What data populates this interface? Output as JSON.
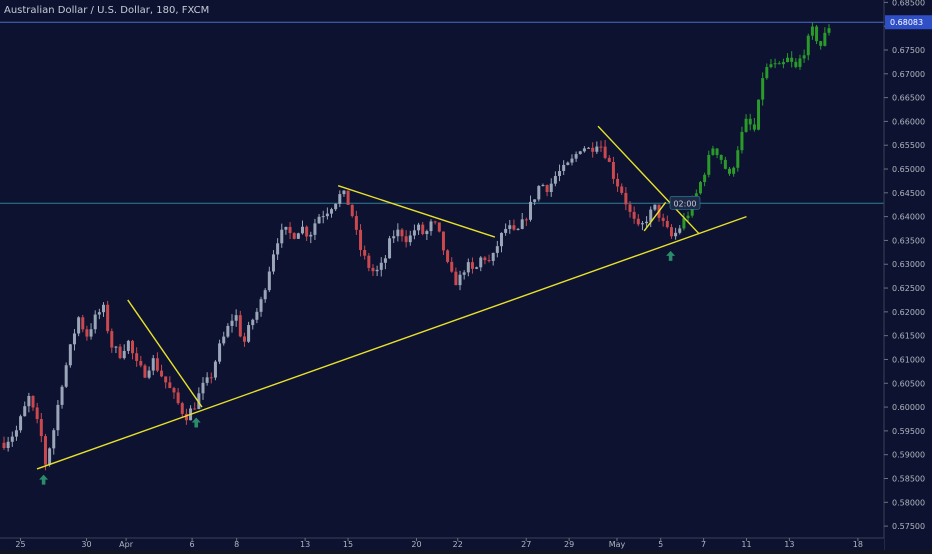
{
  "header": {
    "symbol_title": "Australian Dollar / U.S. Dollar, 180, FXCM"
  },
  "crosshair": {
    "time_label": "02:00",
    "price_value": 0.6428
  },
  "price_tag": {
    "label": "0.68083",
    "value": 0.68083
  },
  "colors": {
    "background": "#0c1230",
    "up_candle": "#9aa6b8",
    "down_candle": "#c9494f",
    "projection_candle": "#2a9a2a",
    "trendline": "#e8e02a",
    "arrow": "#2a8c6a",
    "price_line": "#4a6cc8",
    "crosshair_line": "#2f7f96"
  },
  "chart_data": {
    "type": "candlestick",
    "ylim": [
      0.5725,
      0.6855
    ],
    "xlim": [
      0,
      100
    ],
    "x_ticks": [
      {
        "label": "25",
        "x": 2
      },
      {
        "label": "30",
        "x": 10
      },
      {
        "label": "Apr",
        "x": 14.8
      },
      {
        "label": "6",
        "x": 22.8
      },
      {
        "label": "8",
        "x": 28.2
      },
      {
        "label": "13",
        "x": 36.5
      },
      {
        "label": "15",
        "x": 41.7
      },
      {
        "label": "20",
        "x": 50
      },
      {
        "label": "22",
        "x": 55
      },
      {
        "label": "27",
        "x": 63.3
      },
      {
        "label": "29",
        "x": 68.5
      },
      {
        "label": "May",
        "x": 74.3
      },
      {
        "label": "5",
        "x": 79.6
      },
      {
        "label": "7",
        "x": 84.8
      },
      {
        "label": "11",
        "x": 90
      },
      {
        "label": "13",
        "x": 95.2
      },
      {
        "label": "18",
        "x": 103.5
      }
    ],
    "y_ticks": [
      0.685,
      0.68,
      0.675,
      0.67,
      0.665,
      0.66,
      0.655,
      0.65,
      0.645,
      0.64,
      0.635,
      0.63,
      0.625,
      0.62,
      0.615,
      0.61,
      0.605,
      0.6,
      0.595,
      0.59,
      0.585,
      0.58,
      0.575
    ],
    "anchors": [
      [
        0,
        0.5925
      ],
      [
        1.5,
        0.595
      ],
      [
        3,
        0.602
      ],
      [
        4.5,
        0.594
      ],
      [
        5,
        0.588
      ],
      [
        6,
        0.595
      ],
      [
        7,
        0.605
      ],
      [
        8,
        0.612
      ],
      [
        9,
        0.619
      ],
      [
        10,
        0.615
      ],
      [
        11,
        0.6185
      ],
      [
        12,
        0.621
      ],
      [
        13,
        0.613
      ],
      [
        14,
        0.611
      ],
      [
        15,
        0.614
      ],
      [
        16,
        0.609
      ],
      [
        17,
        0.607
      ],
      [
        18,
        0.61
      ],
      [
        19,
        0.607
      ],
      [
        20,
        0.604
      ],
      [
        21,
        0.601
      ],
      [
        22,
        0.598
      ],
      [
        23,
        0.6
      ],
      [
        24,
        0.604
      ],
      [
        25,
        0.606
      ],
      [
        26,
        0.612
      ],
      [
        27,
        0.616
      ],
      [
        28,
        0.62
      ],
      [
        29,
        0.613
      ],
      [
        30,
        0.618
      ],
      [
        31,
        0.621
      ],
      [
        32,
        0.628
      ],
      [
        33,
        0.635
      ],
      [
        34,
        0.637
      ],
      [
        35,
        0.636
      ],
      [
        36,
        0.638
      ],
      [
        37,
        0.636
      ],
      [
        38,
        0.64
      ],
      [
        39,
        0.641
      ],
      [
        40,
        0.643
      ],
      [
        41,
        0.645
      ],
      [
        42,
        0.642
      ],
      [
        43,
        0.634
      ],
      [
        44,
        0.63
      ],
      [
        45,
        0.628
      ],
      [
        46,
        0.63
      ],
      [
        47,
        0.636
      ],
      [
        48,
        0.637
      ],
      [
        49,
        0.635
      ],
      [
        50,
        0.638
      ],
      [
        51,
        0.636
      ],
      [
        52,
        0.639
      ],
      [
        53,
        0.635
      ],
      [
        54,
        0.628
      ],
      [
        55,
        0.626
      ],
      [
        56,
        0.63
      ],
      [
        57,
        0.628
      ],
      [
        58,
        0.632
      ],
      [
        59,
        0.63
      ],
      [
        60,
        0.635
      ],
      [
        61,
        0.638
      ],
      [
        62,
        0.636
      ],
      [
        63,
        0.639
      ],
      [
        64,
        0.643
      ],
      [
        65,
        0.647
      ],
      [
        66,
        0.646
      ],
      [
        67,
        0.649
      ],
      [
        68,
        0.65
      ],
      [
        69,
        0.652
      ],
      [
        70,
        0.655
      ],
      [
        71,
        0.654
      ],
      [
        72,
        0.656
      ],
      [
        73,
        0.653
      ],
      [
        74,
        0.648
      ],
      [
        75,
        0.645
      ],
      [
        76,
        0.64
      ],
      [
        77,
        0.637
      ],
      [
        78,
        0.64
      ],
      [
        79,
        0.642
      ],
      [
        80,
        0.638
      ],
      [
        81,
        0.6355
      ],
      [
        82,
        0.638
      ],
      [
        83,
        0.641
      ],
      [
        84,
        0.645
      ],
      [
        85,
        0.65
      ],
      [
        86,
        0.655
      ],
      [
        87,
        0.652
      ],
      [
        88,
        0.648
      ],
      [
        89,
        0.655
      ],
      [
        90,
        0.66
      ],
      [
        91,
        0.658
      ],
      [
        92,
        0.67
      ],
      [
        93,
        0.672
      ],
      [
        94,
        0.671
      ],
      [
        95,
        0.673
      ],
      [
        96,
        0.671
      ],
      [
        97,
        0.675
      ],
      [
        98,
        0.679
      ],
      [
        99,
        0.676
      ],
      [
        100,
        0.68
      ]
    ],
    "projection_start_x": 82,
    "trendlines": [
      [
        [
          4,
          0.587
        ],
        [
          90,
          0.64
        ]
      ],
      [
        [
          15,
          0.6225
        ],
        [
          24,
          0.6
        ]
      ],
      [
        [
          40.5,
          0.6465
        ],
        [
          59.5,
          0.6357
        ]
      ],
      [
        [
          72,
          0.659
        ],
        [
          84.2,
          0.6365
        ]
      ],
      [
        [
          77.6,
          0.637
        ],
        [
          80.2,
          0.643
        ]
      ]
    ],
    "arrows": [
      {
        "x": 4.8,
        "y": 0.5875
      },
      {
        "x": 23.3,
        "y": 0.5995
      },
      {
        "x": 80.8,
        "y": 0.6345
      }
    ]
  }
}
